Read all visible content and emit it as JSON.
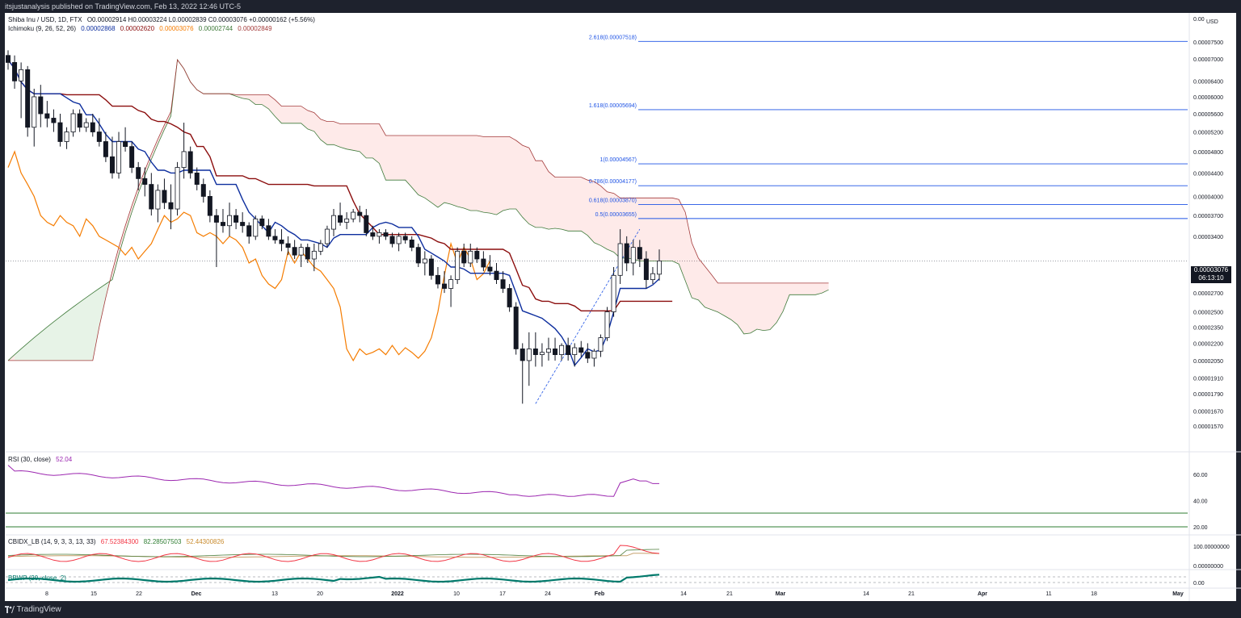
{
  "header": {
    "publisher": "itsjustanalysis published on TradingView.com, Feb 13, 2022 12:46 UTC-5"
  },
  "footer": {
    "brand": "TradingView"
  },
  "legend": {
    "symbol": "Shiba Inu / USD, 1D, FTX",
    "ohlc": "O0.00002914 H0.00003224 L0.00002839 C0.00003076 +0.00000162 (+5.56%)",
    "ichimoku_title": "Ichimoku (9, 26, 52, 26)",
    "ichimoku_values": [
      "0.00002868",
      "0.00002620",
      "0.00003076",
      "0.00002744",
      "0.00002849"
    ],
    "rsi_title": "RSI (30, close)",
    "rsi_value": "52.04",
    "cbidx_title": "CBIDX_LB (14, 9, 3, 3, 13, 33)",
    "cbidx_values": [
      "67.52384300",
      "82.28507503",
      "52.44300826"
    ],
    "bbwp_title": "BBWP (20, close, 2)"
  },
  "price_axis": {
    "currency": "USD",
    "top_label": "0.00",
    "labels": [
      "0.00007500",
      "0.00007000",
      "0.00006400",
      "0.00006000",
      "0.00005600",
      "0.00005200",
      "0.00004800",
      "0.00004400",
      "0.00004000",
      "0.00003700",
      "0.00003400",
      "0.00002900",
      "0.00002700",
      "0.00002500",
      "0.00002350",
      "0.00002200",
      "0.00002050",
      "0.00001910",
      "0.00001790",
      "0.00001670",
      "0.00001570"
    ],
    "current_price": "0.00003076",
    "countdown": "06:13:10"
  },
  "rsi_axis": [
    "60.00",
    "40.00",
    "20.00"
  ],
  "cbidx_axis": [
    "100.00000000",
    "0.00000000"
  ],
  "bbwp_axis": [
    "0.00"
  ],
  "time_axis": [
    "8",
    "15",
    "22",
    "Dec",
    "13",
    "20",
    "2022",
    "10",
    "17",
    "24",
    "Feb",
    "14",
    "21",
    "Mar",
    "14",
    "21",
    "Apr",
    "11",
    "18",
    "May"
  ],
  "fib_levels": [
    {
      "label": "2.618(0.00007518)"
    },
    {
      "label": "1.618(0.00005694)"
    },
    {
      "label": "1(0.00004567)"
    },
    {
      "label": "0.786(0.00004177)"
    },
    {
      "label": "0.618(0.00003870)"
    },
    {
      "label": "0.5(0.00003655)"
    }
  ],
  "colors": {
    "tenkan": "#0d2e9e",
    "kijun": "#8b0d0d",
    "chikou": "#f57c00",
    "span_a": "#3f7a3a",
    "span_b": "#a33a3a",
    "fib": "#1e53e5",
    "rsi": "#9c27b0",
    "cbidx_red": "#f23645",
    "cbidx_green": "#4c7d3a",
    "cbidx_tan": "#c7a26e",
    "bbwp": "#00796b"
  },
  "chart_data": {
    "type": "candlestick",
    "candles": [
      {
        "o": 7.1,
        "h": 7.25,
        "l": 6.7,
        "c": 6.9
      },
      {
        "o": 6.9,
        "h": 7.1,
        "l": 6.2,
        "c": 6.4
      },
      {
        "o": 6.4,
        "h": 6.9,
        "l": 5.5,
        "c": 6.7
      },
      {
        "o": 6.7,
        "h": 6.8,
        "l": 5.1,
        "c": 5.3
      },
      {
        "o": 5.3,
        "h": 6.2,
        "l": 4.9,
        "c": 6.0
      },
      {
        "o": 6.0,
        "h": 6.3,
        "l": 5.3,
        "c": 5.6
      },
      {
        "o": 5.6,
        "h": 5.9,
        "l": 5.3,
        "c": 5.5
      },
      {
        "o": 5.5,
        "h": 5.7,
        "l": 5.2,
        "c": 5.4
      },
      {
        "o": 5.4,
        "h": 5.6,
        "l": 4.9,
        "c": 5.0
      },
      {
        "o": 5.0,
        "h": 5.3,
        "l": 4.85,
        "c": 5.2
      },
      {
        "o": 5.2,
        "h": 5.7,
        "l": 5.1,
        "c": 5.6
      },
      {
        "o": 5.6,
        "h": 5.7,
        "l": 5.2,
        "c": 5.3
      },
      {
        "o": 5.3,
        "h": 5.5,
        "l": 5.2,
        "c": 5.4
      },
      {
        "o": 5.4,
        "h": 5.6,
        "l": 5.1,
        "c": 5.2
      },
      {
        "o": 5.2,
        "h": 5.5,
        "l": 4.9,
        "c": 5.0
      },
      {
        "o": 5.0,
        "h": 5.2,
        "l": 4.6,
        "c": 4.7
      },
      {
        "o": 4.7,
        "h": 5.1,
        "l": 4.3,
        "c": 4.4
      },
      {
        "o": 4.4,
        "h": 5.2,
        "l": 4.3,
        "c": 5.0
      },
      {
        "o": 5.0,
        "h": 5.3,
        "l": 4.8,
        "c": 4.9
      },
      {
        "o": 4.9,
        "h": 5.0,
        "l": 4.4,
        "c": 4.5
      },
      {
        "o": 4.5,
        "h": 4.6,
        "l": 4.1,
        "c": 4.3
      },
      {
        "o": 4.3,
        "h": 4.5,
        "l": 4.0,
        "c": 4.2
      },
      {
        "o": 4.2,
        "h": 4.4,
        "l": 3.7,
        "c": 3.8
      },
      {
        "o": 3.8,
        "h": 4.2,
        "l": 3.6,
        "c": 4.1
      },
      {
        "o": 4.1,
        "h": 4.3,
        "l": 3.8,
        "c": 3.9
      },
      {
        "o": 3.9,
        "h": 4.2,
        "l": 3.5,
        "c": 3.8
      },
      {
        "o": 3.8,
        "h": 4.6,
        "l": 3.7,
        "c": 4.5
      },
      {
        "o": 4.5,
        "h": 5.4,
        "l": 4.3,
        "c": 4.8
      },
      {
        "o": 4.8,
        "h": 4.9,
        "l": 4.3,
        "c": 4.4
      },
      {
        "o": 4.4,
        "h": 4.5,
        "l": 4.1,
        "c": 4.2
      },
      {
        "o": 4.2,
        "h": 4.3,
        "l": 3.9,
        "c": 4.0
      },
      {
        "o": 4.0,
        "h": 4.1,
        "l": 3.6,
        "c": 3.7
      },
      {
        "o": 3.7,
        "h": 3.8,
        "l": 3.0,
        "c": 3.6
      },
      {
        "o": 3.6,
        "h": 3.8,
        "l": 3.45,
        "c": 3.55
      },
      {
        "o": 3.55,
        "h": 3.9,
        "l": 3.4,
        "c": 3.7
      },
      {
        "o": 3.7,
        "h": 3.8,
        "l": 3.5,
        "c": 3.6
      },
      {
        "o": 3.6,
        "h": 3.75,
        "l": 3.45,
        "c": 3.55
      },
      {
        "o": 3.55,
        "h": 3.6,
        "l": 3.3,
        "c": 3.4
      },
      {
        "o": 3.4,
        "h": 3.7,
        "l": 3.35,
        "c": 3.65
      },
      {
        "o": 3.65,
        "h": 3.7,
        "l": 3.5,
        "c": 3.55
      },
      {
        "o": 3.55,
        "h": 3.65,
        "l": 3.35,
        "c": 3.4
      },
      {
        "o": 3.4,
        "h": 3.5,
        "l": 3.3,
        "c": 3.35
      },
      {
        "o": 3.35,
        "h": 3.5,
        "l": 3.2,
        "c": 3.3
      },
      {
        "o": 3.3,
        "h": 3.4,
        "l": 3.15,
        "c": 3.25
      },
      {
        "o": 3.25,
        "h": 3.35,
        "l": 3.1,
        "c": 3.15
      },
      {
        "o": 3.15,
        "h": 3.3,
        "l": 3.0,
        "c": 3.25
      },
      {
        "o": 3.25,
        "h": 3.3,
        "l": 3.05,
        "c": 3.1
      },
      {
        "o": 3.1,
        "h": 3.3,
        "l": 2.95,
        "c": 3.2
      },
      {
        "o": 3.2,
        "h": 3.35,
        "l": 3.15,
        "c": 3.3
      },
      {
        "o": 3.3,
        "h": 3.55,
        "l": 3.25,
        "c": 3.5
      },
      {
        "o": 3.5,
        "h": 3.8,
        "l": 3.4,
        "c": 3.7
      },
      {
        "o": 3.7,
        "h": 3.9,
        "l": 3.55,
        "c": 3.6
      },
      {
        "o": 3.6,
        "h": 3.75,
        "l": 3.5,
        "c": 3.65
      },
      {
        "o": 3.65,
        "h": 3.8,
        "l": 3.6,
        "c": 3.75
      },
      {
        "o": 3.75,
        "h": 3.85,
        "l": 3.6,
        "c": 3.7
      },
      {
        "o": 3.7,
        "h": 3.8,
        "l": 3.4,
        "c": 3.45
      },
      {
        "o": 3.45,
        "h": 3.55,
        "l": 3.35,
        "c": 3.4
      },
      {
        "o": 3.4,
        "h": 3.5,
        "l": 3.3,
        "c": 3.45
      },
      {
        "o": 3.45,
        "h": 3.5,
        "l": 3.35,
        "c": 3.4
      },
      {
        "o": 3.4,
        "h": 3.45,
        "l": 3.25,
        "c": 3.3
      },
      {
        "o": 3.3,
        "h": 3.45,
        "l": 3.2,
        "c": 3.4
      },
      {
        "o": 3.4,
        "h": 3.45,
        "l": 3.3,
        "c": 3.35
      },
      {
        "o": 3.35,
        "h": 3.4,
        "l": 3.2,
        "c": 3.25
      },
      {
        "o": 3.25,
        "h": 3.3,
        "l": 3.0,
        "c": 3.05
      },
      {
        "o": 3.05,
        "h": 3.2,
        "l": 2.9,
        "c": 3.1
      },
      {
        "o": 3.1,
        "h": 3.15,
        "l": 2.85,
        "c": 2.9
      },
      {
        "o": 2.9,
        "h": 3.0,
        "l": 2.75,
        "c": 2.8
      },
      {
        "o": 2.8,
        "h": 2.95,
        "l": 2.7,
        "c": 2.75
      },
      {
        "o": 2.75,
        "h": 2.9,
        "l": 2.55,
        "c": 2.85
      },
      {
        "o": 2.85,
        "h": 3.25,
        "l": 2.8,
        "c": 3.2
      },
      {
        "o": 3.2,
        "h": 3.3,
        "l": 3.0,
        "c": 3.05
      },
      {
        "o": 3.05,
        "h": 3.3,
        "l": 3.0,
        "c": 3.2
      },
      {
        "o": 3.2,
        "h": 3.25,
        "l": 3.05,
        "c": 3.1
      },
      {
        "o": 3.1,
        "h": 3.2,
        "l": 2.95,
        "c": 3.0
      },
      {
        "o": 3.0,
        "h": 3.15,
        "l": 2.9,
        "c": 2.95
      },
      {
        "o": 2.95,
        "h": 3.05,
        "l": 2.8,
        "c": 2.85
      },
      {
        "o": 2.85,
        "h": 2.95,
        "l": 2.7,
        "c": 2.75
      },
      {
        "o": 2.75,
        "h": 2.8,
        "l": 2.5,
        "c": 2.55
      },
      {
        "o": 2.55,
        "h": 2.6,
        "l": 2.1,
        "c": 2.15
      },
      {
        "o": 2.15,
        "h": 2.2,
        "l": 1.72,
        "c": 2.05
      },
      {
        "o": 2.05,
        "h": 2.3,
        "l": 1.85,
        "c": 2.15
      },
      {
        "o": 2.15,
        "h": 2.3,
        "l": 2.0,
        "c": 2.1
      },
      {
        "o": 2.1,
        "h": 2.2,
        "l": 2.0,
        "c": 2.12
      },
      {
        "o": 2.12,
        "h": 2.25,
        "l": 2.05,
        "c": 2.15
      },
      {
        "o": 2.15,
        "h": 2.25,
        "l": 2.05,
        "c": 2.1
      },
      {
        "o": 2.1,
        "h": 2.2,
        "l": 2.05,
        "c": 2.18
      },
      {
        "o": 2.18,
        "h": 2.25,
        "l": 2.05,
        "c": 2.1
      },
      {
        "o": 2.1,
        "h": 2.2,
        "l": 2.0,
        "c": 2.16
      },
      {
        "o": 2.16,
        "h": 2.22,
        "l": 2.08,
        "c": 2.12
      },
      {
        "o": 2.12,
        "h": 2.2,
        "l": 2.03,
        "c": 2.07
      },
      {
        "o": 2.07,
        "h": 2.15,
        "l": 2.0,
        "c": 2.13
      },
      {
        "o": 2.13,
        "h": 2.28,
        "l": 2.08,
        "c": 2.25
      },
      {
        "o": 2.25,
        "h": 2.55,
        "l": 2.22,
        "c": 2.5
      },
      {
        "o": 2.5,
        "h": 3.0,
        "l": 2.45,
        "c": 2.9
      },
      {
        "o": 2.9,
        "h": 3.5,
        "l": 2.8,
        "c": 3.3
      },
      {
        "o": 3.3,
        "h": 3.4,
        "l": 2.95,
        "c": 3.05
      },
      {
        "o": 3.05,
        "h": 3.35,
        "l": 2.9,
        "c": 3.25
      },
      {
        "o": 3.25,
        "h": 3.35,
        "l": 3.0,
        "c": 3.1
      },
      {
        "o": 3.1,
        "h": 3.2,
        "l": 2.75,
        "c": 2.85
      },
      {
        "o": 2.85,
        "h": 3.0,
        "l": 2.8,
        "c": 2.92
      },
      {
        "o": 2.914,
        "h": 3.224,
        "l": 2.839,
        "c": 3.076
      }
    ],
    "price_unit": "1e-5 USD",
    "ylim": [
      1.52,
      7.6
    ]
  }
}
